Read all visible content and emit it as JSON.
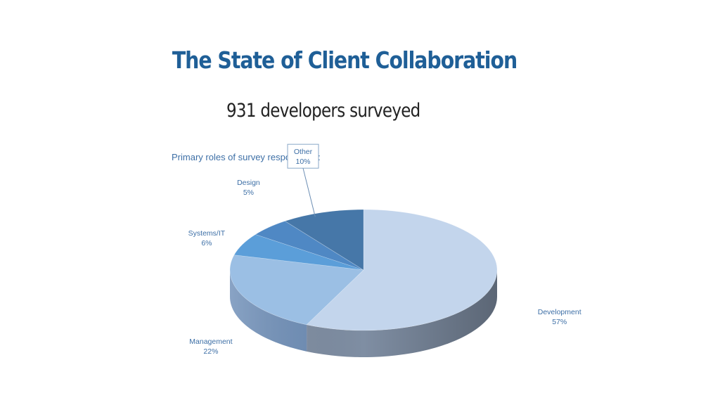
{
  "slide": {
    "title": "The State of Client Collaboration",
    "subtitle": "931 developers surveyed"
  },
  "chart_data": {
    "type": "pie",
    "title": "Primary roles of survey respondents:",
    "legend": "none",
    "style": "3d",
    "slices": [
      {
        "label": "Development",
        "value": 57,
        "value_label": "57%",
        "color": "#c3d5ec",
        "side": "#7f8ea3"
      },
      {
        "label": "Management",
        "value": 22,
        "value_label": "22%",
        "color": "#9bbfe4",
        "side": "#6f8fb8"
      },
      {
        "label": "Systems/IT",
        "value": 6,
        "value_label": "6%",
        "color": "#5b9ed9",
        "side": "#3e6e9c"
      },
      {
        "label": "Design",
        "value": 5,
        "value_label": "5%",
        "color": "#4f88c4",
        "side": "#365f8c"
      },
      {
        "label": "Other",
        "value": 10,
        "value_label": "10%",
        "color": "#4677a8",
        "side": "#2f527a"
      }
    ]
  }
}
